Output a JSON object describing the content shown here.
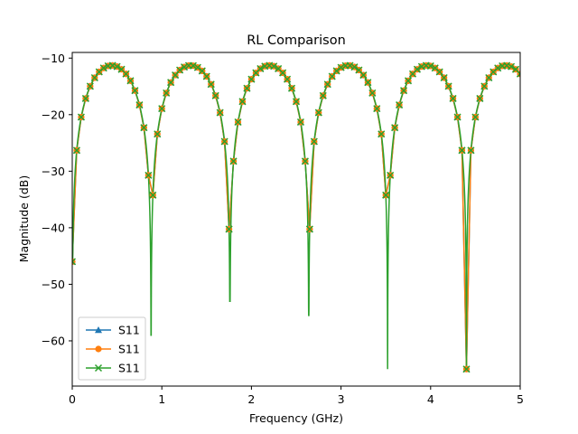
{
  "chart_data": {
    "type": "line",
    "title": "RL Comparison",
    "xlabel": "Frequency (GHz)",
    "ylabel": "Magnitude (dB)",
    "xlim": [
      0,
      5
    ],
    "ylim": [
      -68,
      -9
    ],
    "xticks": [
      0,
      1,
      2,
      3,
      4,
      5
    ],
    "yticks": [
      -10,
      -20,
      -30,
      -40,
      -50,
      -60
    ],
    "grid": false,
    "legend_placement": "lower-left",
    "model": {
      "envelope_db": -11.3,
      "nulls_ghz": [
        0.0,
        0.88,
        1.76,
        2.64,
        3.52,
        4.4
      ],
      "null_depths_db": [
        -46,
        -59,
        -53,
        -55.5,
        -65,
        -65
      ]
    },
    "series": [
      {
        "name": "S11",
        "marker": "triangle",
        "color": "#1f77b4",
        "x_start": 0.0,
        "x_step": 0.05
      },
      {
        "name": "S11",
        "marker": "circle",
        "color": "#ff7f0e",
        "x_start": 0.0,
        "x_step": 0.05
      },
      {
        "name": "S11",
        "marker": "x",
        "color": "#2ca02c",
        "x_start": 0.0,
        "x_step": 0.05,
        "dense_line": true
      }
    ]
  }
}
